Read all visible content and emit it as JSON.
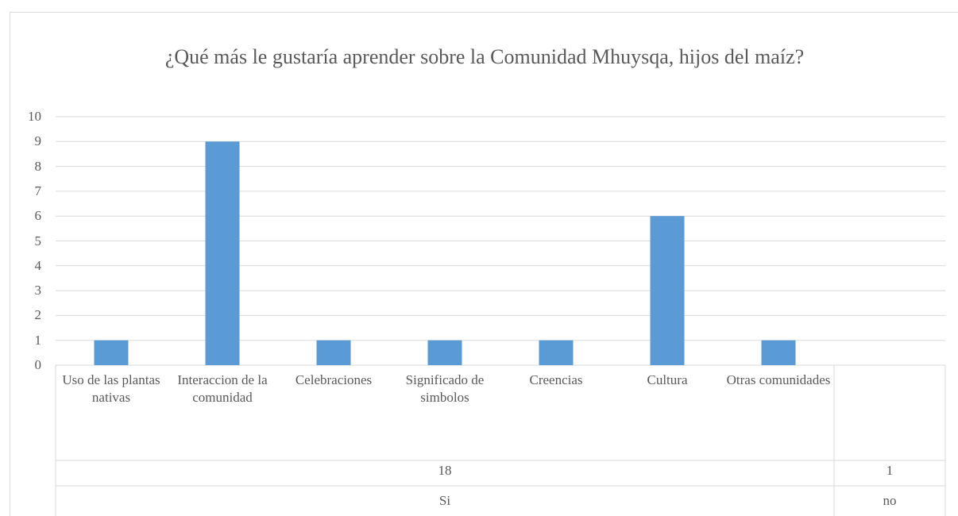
{
  "chart_data": {
    "type": "bar",
    "title": "¿Qué más le gustaría aprender sobre la Comunidad Mhuysqa, hijos del maíz?",
    "color": "#5b9bd5",
    "grid": true,
    "ylim": [
      0,
      10
    ],
    "yticks": [
      0,
      1,
      2,
      3,
      4,
      5,
      6,
      7,
      8,
      9,
      10
    ],
    "groups": [
      {
        "label": "Si",
        "groups": [
          {
            "label": "18",
            "categories": [
              "Uso de las plantas nativas",
              "Interaccion de la comunidad",
              "Celebraciones",
              "Significado de simbolos",
              "Creencias",
              "Cultura",
              "Otras comunidades"
            ],
            "values": [
              1,
              9,
              1,
              1,
              1,
              6,
              1
            ]
          }
        ]
      },
      {
        "label": "no",
        "groups": [
          {
            "label": "1",
            "categories": [
              null
            ],
            "values": [
              null
            ]
          }
        ]
      }
    ]
  }
}
